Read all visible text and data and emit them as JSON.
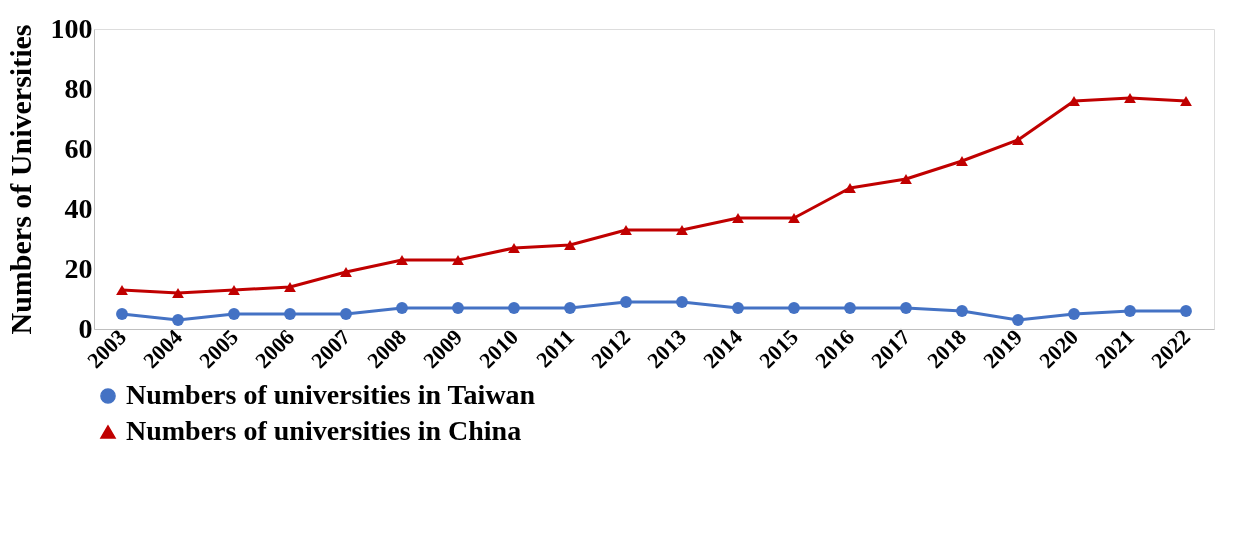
{
  "chart_data": {
    "type": "line",
    "ylabel": "Numbers of Universities",
    "categories": [
      "2003",
      "2004",
      "2005",
      "2006",
      "2007",
      "2008",
      "2009",
      "2010",
      "2011",
      "2012",
      "2013",
      "2014",
      "2015",
      "2016",
      "2017",
      "2018",
      "2019",
      "2020",
      "2021",
      "2022"
    ],
    "series": [
      {
        "name": "Numbers of universities in Taiwan",
        "color": "#4472c4",
        "marker": "circle",
        "values": [
          5,
          3,
          5,
          5,
          5,
          7,
          7,
          7,
          7,
          9,
          9,
          7,
          7,
          7,
          7,
          6,
          3,
          5,
          6,
          6
        ]
      },
      {
        "name": "Numbers of universities in China",
        "color": "#c00000",
        "marker": "triangle",
        "values": [
          13,
          12,
          13,
          14,
          19,
          23,
          23,
          27,
          28,
          33,
          33,
          37,
          37,
          47,
          50,
          56,
          63,
          76,
          77,
          76
        ]
      }
    ],
    "ylim": [
      0,
      100
    ],
    "yticks": [
      0,
      20,
      40,
      60,
      80,
      100
    ],
    "grid": false,
    "legend": "bottom"
  }
}
